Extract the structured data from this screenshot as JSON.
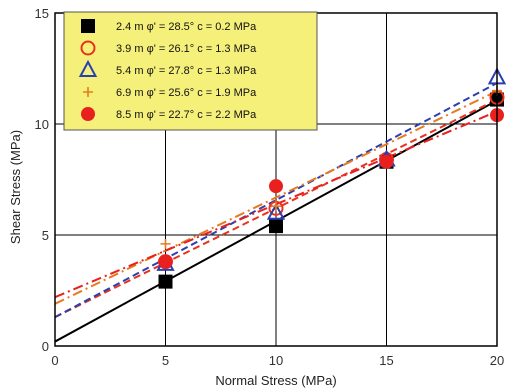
{
  "chart_data": {
    "type": "scatter",
    "xlabel": "Normal Stress (MPa)",
    "ylabel": "Shear Stress (MPa)",
    "xlim": [
      0,
      20
    ],
    "ylim": [
      0,
      15
    ],
    "xticks": [
      "0",
      "5",
      "10",
      "15",
      "20"
    ],
    "yticks": [
      "0",
      "5",
      "10",
      "15"
    ],
    "grid": true,
    "legend_position": "top-left",
    "series": [
      {
        "name": "2.4 m  φ' = 28.5°  c = 0.2 MPa",
        "marker": "filled-square",
        "color": "#000000",
        "line_style": "solid",
        "x": [
          5,
          10,
          15,
          20
        ],
        "y": [
          2.9,
          5.4,
          8.3,
          11.1
        ],
        "fit": {
          "phi_deg": 28.5,
          "c": 0.2
        }
      },
      {
        "name": "3.9 m  φ' = 26.1°  c = 1.3 MPa",
        "marker": "open-circle",
        "color": "#e8321e",
        "line_style": "dashed",
        "x": [
          5,
          10,
          15,
          20
        ],
        "y": [
          3.8,
          6.2,
          8.4,
          11.2
        ],
        "fit": {
          "phi_deg": 26.1,
          "c": 1.3
        }
      },
      {
        "name": "5.4 m  φ' = 27.8°  c = 1.3 MPa",
        "marker": "open-triangle",
        "color": "#2a3fb0",
        "line_style": "dashed",
        "x": [
          5,
          10,
          15,
          20
        ],
        "y": [
          3.7,
          6.0,
          8.4,
          12.1
        ],
        "fit": {
          "phi_deg": 27.8,
          "c": 1.3
        }
      },
      {
        "name": "6.9 m  φ' = 25.6°  c = 1.9 MPa",
        "marker": "plus",
        "color": "#e87a1e",
        "line_style": "dash-dot",
        "x": [
          5,
          10,
          15,
          20
        ],
        "y": [
          4.6,
          6.3,
          8.3,
          11.5
        ],
        "fit": {
          "phi_deg": 25.6,
          "c": 1.9
        }
      },
      {
        "name": "8.5 m  φ' = 22.7°  c = 2.2 MPa",
        "marker": "filled-circle",
        "color": "#e8201e",
        "line_style": "dash-dot",
        "x": [
          5,
          10,
          15,
          20
        ],
        "y": [
          3.8,
          7.2,
          8.3,
          10.4
        ],
        "fit": {
          "phi_deg": 22.7,
          "c": 2.2
        }
      }
    ]
  },
  "colors": {
    "legend_background": "#f5f07a",
    "grid": "#000000",
    "frame": "#000000"
  }
}
